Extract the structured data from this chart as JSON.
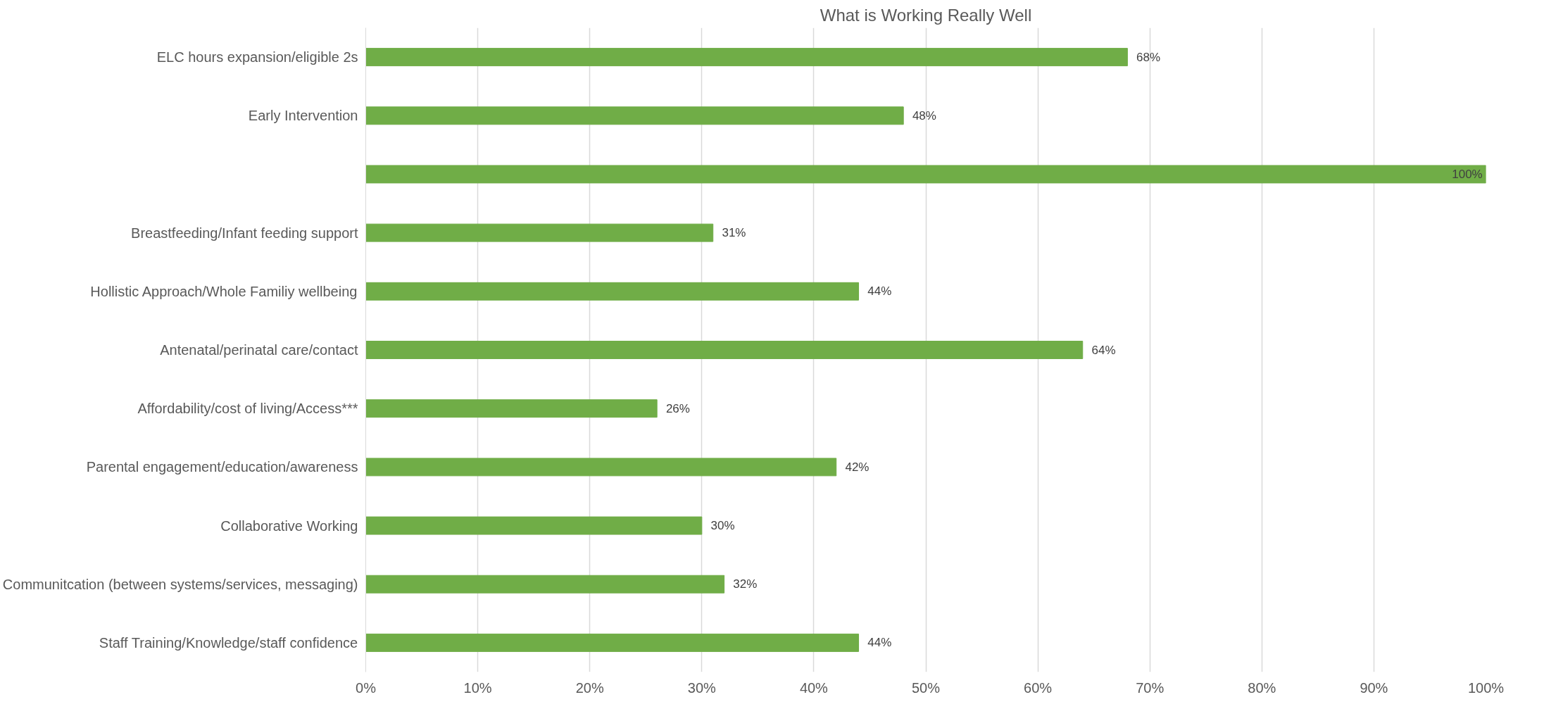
{
  "chart_data": {
    "type": "bar",
    "orientation": "horizontal",
    "title": "What is Working Really Well",
    "categories": [
      "ELC hours expansion/eligible 2s",
      "Early Intervention",
      null,
      "Breastfeeding/Infant feeding support",
      "Hollistic Approach/Whole Familiy wellbeing",
      "Antenatal/perinatal care/contact",
      "Affordability/cost of living/Access***",
      "Parental engagement/education/awareness",
      "Collaborative Working",
      "Communitcation (between systems/services, messaging)",
      "Staff Training/Knowledge/staff confidence"
    ],
    "values": [
      68,
      48,
      100,
      31,
      44,
      64,
      26,
      42,
      30,
      32,
      44
    ],
    "color": "#70ad47",
    "value_labels": [
      "68%",
      "48%",
      "100%",
      "31%",
      "44%",
      "64%",
      "26%",
      "42%",
      "30%",
      "32%",
      "44%"
    ],
    "xlim": [
      0,
      100
    ],
    "xticks": [
      {
        "value": 0,
        "label": "0%"
      },
      {
        "value": 10,
        "label": "10%"
      },
      {
        "value": 20,
        "label": "20%"
      },
      {
        "value": 30,
        "label": "30%"
      },
      {
        "value": 40,
        "label": "40%"
      },
      {
        "value": 50,
        "label": "50%"
      },
      {
        "value": 60,
        "label": "60%"
      },
      {
        "value": 70,
        "label": "70%"
      },
      {
        "value": 80,
        "label": "80%"
      },
      {
        "value": 90,
        "label": "90%"
      },
      {
        "value": 100,
        "label": "100%"
      }
    ],
    "grid": "x"
  }
}
